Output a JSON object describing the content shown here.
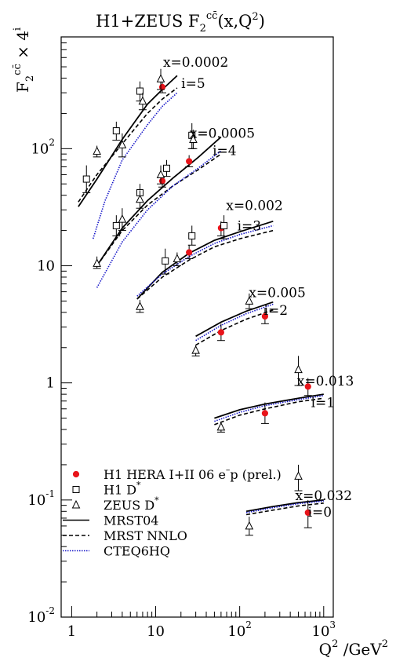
{
  "chart_data": {
    "type": "scatter",
    "title": "H1+ZEUS F",
    "title_sub": "2",
    "title_sup": "cc̄",
    "title_tail": "(x,Q",
    "title_tail_sup": "2",
    "title_end": ")",
    "ylabel": {
      "main": "F",
      "sub": "2",
      "sup": "cc̄",
      "rest": " × 4",
      "rest_sup": "i"
    },
    "xlabel": {
      "main": "Q",
      "sup": "2",
      "rest": " /GeV",
      "rest_sup": "2"
    },
    "x_scale": "log",
    "y_scale": "log",
    "xlim": [
      0.75,
      1300
    ],
    "ylim": [
      0.01,
      900
    ],
    "x_ticks": [
      {
        "value": 1,
        "label": "1"
      },
      {
        "value": 10,
        "label": "10"
      },
      {
        "value": 100,
        "label": "10",
        "sup": "2"
      },
      {
        "value": 1000,
        "label": "10",
        "sup": "3"
      }
    ],
    "y_ticks": [
      {
        "value": 0.01,
        "label": "10",
        "sup": "-2"
      },
      {
        "value": 0.1,
        "label": "10",
        "sup": "-1"
      },
      {
        "value": 1,
        "label": "1"
      },
      {
        "value": 10,
        "label": "10"
      },
      {
        "value": 100,
        "label": "10",
        "sup": "2"
      }
    ],
    "bins": [
      {
        "x_label": "x=0.0002",
        "i_label": "i=5",
        "label_at": [
          30,
          500,
          28,
          330
        ]
      },
      {
        "x_label": "x=0.0005",
        "i_label": "i=4",
        "label_at": [
          62,
          124,
          66,
          88
        ]
      },
      {
        "x_label": "x=0.002",
        "i_label": "i=3",
        "label_at": [
          150,
          30,
          130,
          20
        ]
      },
      {
        "x_label": "x=0.005",
        "i_label": "i=2",
        "label_at": [
          280,
          5.4,
          270,
          3.8
        ]
      },
      {
        "x_label": "x=0.013",
        "i_label": "i=1",
        "label_at": [
          1050,
          0.95,
          980,
          0.62
        ]
      },
      {
        "x_label": "x=0.032",
        "i_label": "i=0",
        "label_at": [
          1000,
          0.1,
          900,
          0.072
        ]
      }
    ],
    "series": [
      {
        "name": "H1 HERA I+II 06 e⁻p (prel.)",
        "marker": "circle",
        "color": "#e8141a",
        "points": [
          {
            "x": 12,
            "y": 335,
            "lo": 300,
            "hi": 370
          },
          {
            "x": 12,
            "y": 53,
            "lo": 47,
            "hi": 60
          },
          {
            "x": 25,
            "y": 78,
            "lo": 70,
            "hi": 88
          },
          {
            "x": 25,
            "y": 13,
            "lo": 11.5,
            "hi": 15
          },
          {
            "x": 60,
            "y": 21,
            "lo": 18,
            "hi": 24
          },
          {
            "x": 60,
            "y": 2.7,
            "lo": 2.3,
            "hi": 3.2
          },
          {
            "x": 200,
            "y": 3.7,
            "lo": 3.2,
            "hi": 4.3
          },
          {
            "x": 200,
            "y": 0.55,
            "lo": 0.45,
            "hi": 0.68
          },
          {
            "x": 650,
            "y": 0.93,
            "lo": 0.78,
            "hi": 1.1
          },
          {
            "x": 650,
            "y": 0.078,
            "lo": 0.058,
            "hi": 0.1
          }
        ]
      },
      {
        "name": "H1 D*",
        "marker": "square",
        "color": "#000000",
        "points": [
          {
            "x": 1.5,
            "y": 55,
            "lo": 42,
            "hi": 72
          },
          {
            "x": 3.4,
            "y": 142,
            "lo": 118,
            "hi": 170
          },
          {
            "x": 6.5,
            "y": 310,
            "lo": 255,
            "hi": 375
          },
          {
            "x": 27,
            "y": 130,
            "lo": 100,
            "hi": 165
          },
          {
            "x": 3.4,
            "y": 22,
            "lo": 18,
            "hi": 27
          },
          {
            "x": 6.5,
            "y": 42,
            "lo": 35,
            "hi": 50
          },
          {
            "x": 13.5,
            "y": 68,
            "lo": 58,
            "hi": 80
          },
          {
            "x": 13,
            "y": 11,
            "lo": 8.5,
            "hi": 14
          },
          {
            "x": 27,
            "y": 18,
            "lo": 15,
            "hi": 22
          },
          {
            "x": 65,
            "y": 22,
            "lo": 17,
            "hi": 27
          }
        ]
      },
      {
        "name": "ZEUS D*",
        "marker": "triangle",
        "color": "#000000",
        "points": [
          {
            "x": 2.0,
            "y": 95,
            "lo": 85,
            "hi": 106
          },
          {
            "x": 4.0,
            "y": 108,
            "lo": 85,
            "hi": 135
          },
          {
            "x": 7.0,
            "y": 255,
            "lo": 215,
            "hi": 300
          },
          {
            "x": 11.5,
            "y": 395,
            "lo": 320,
            "hi": 480
          },
          {
            "x": 28,
            "y": 120,
            "lo": 100,
            "hi": 145
          },
          {
            "x": 2.0,
            "y": 10.5,
            "lo": 9.5,
            "hi": 12
          },
          {
            "x": 4.0,
            "y": 25,
            "lo": 20,
            "hi": 31
          },
          {
            "x": 6.5,
            "y": 37,
            "lo": 31,
            "hi": 44
          },
          {
            "x": 11.5,
            "y": 60,
            "lo": 50,
            "hi": 72
          },
          {
            "x": 6.5,
            "y": 4.5,
            "lo": 4,
            "hi": 5.1
          },
          {
            "x": 18,
            "y": 11.5,
            "lo": 10,
            "hi": 13
          },
          {
            "x": 30,
            "y": 1.9,
            "lo": 1.7,
            "hi": 2.1
          },
          {
            "x": 130,
            "y": 5.0,
            "lo": 4.3,
            "hi": 5.8
          },
          {
            "x": 60,
            "y": 0.42,
            "lo": 0.38,
            "hi": 0.46
          },
          {
            "x": 500,
            "y": 1.3,
            "lo": 0.95,
            "hi": 1.7
          },
          {
            "x": 130,
            "y": 0.06,
            "lo": 0.05,
            "hi": 0.072
          },
          {
            "x": 500,
            "y": 0.16,
            "lo": 0.12,
            "hi": 0.2
          }
        ]
      },
      {
        "name": "MRST04",
        "style": "solid",
        "color": "#000000",
        "curves": [
          {
            "x": [
              1.2,
              2,
              4,
              8,
              12,
              18
            ],
            "y": [
              32,
              55,
              120,
              240,
              320,
              420
            ]
          },
          {
            "x": [
              2,
              4,
              8,
              16,
              32,
              60
            ],
            "y": [
              10,
              21,
              36,
              56,
              84,
              126
            ]
          },
          {
            "x": [
              6,
              12,
              25,
              50,
              100,
              250
            ],
            "y": [
              5.2,
              8.8,
              12.8,
              16.5,
              19.5,
              24
            ]
          },
          {
            "x": [
              30,
              60,
              120,
              250
            ],
            "y": [
              2.5,
              3.3,
              4.1,
              4.9
            ]
          },
          {
            "x": [
              50,
              100,
              200,
              500,
              1000
            ],
            "y": [
              0.5,
              0.59,
              0.66,
              0.74,
              0.8
            ]
          },
          {
            "x": [
              120,
              250,
              500,
              1000
            ],
            "y": [
              0.08,
              0.088,
              0.095,
              0.1
            ]
          }
        ]
      },
      {
        "name": "MRST NNLO",
        "style": "dashed",
        "color": "#000000",
        "curves": [
          {
            "x": [
              1.2,
              2,
              4,
              8,
              12,
              18
            ],
            "y": [
              35,
              60,
              110,
              200,
              265,
              330
            ]
          },
          {
            "x": [
              2,
              4,
              8,
              16,
              32,
              60
            ],
            "y": [
              10,
              20,
              33,
              48,
              66,
              90
            ]
          },
          {
            "x": [
              6,
              12,
              25,
              50,
              100,
              250
            ],
            "y": [
              5.2,
              8,
              11.2,
              14.5,
              17,
              20
            ]
          },
          {
            "x": [
              30,
              60,
              120,
              250
            ],
            "y": [
              2.1,
              2.8,
              3.5,
              4.2
            ]
          },
          {
            "x": [
              50,
              100,
              200,
              500,
              1000
            ],
            "y": [
              0.44,
              0.53,
              0.6,
              0.69,
              0.74
            ]
          },
          {
            "x": [
              120,
              250,
              500,
              1000
            ],
            "y": [
              0.075,
              0.082,
              0.089,
              0.094
            ]
          }
        ]
      },
      {
        "name": "CTEQ6HQ",
        "style": "dotted",
        "color": "#1414c8",
        "curves": [
          {
            "x": [
              1.8,
              2.5,
              4,
              8,
              12,
              18
            ],
            "y": [
              17,
              36,
              80,
              160,
              230,
              300
            ]
          },
          {
            "x": [
              2,
              4,
              8,
              16,
              32,
              60
            ],
            "y": [
              6.5,
              16,
              30,
              48,
              68,
              96
            ]
          },
          {
            "x": [
              6,
              12,
              25,
              50,
              100,
              250
            ],
            "y": [
              5.5,
              8.5,
              12,
              15.5,
              18.5,
              22
            ]
          },
          {
            "x": [
              30,
              60,
              120,
              250
            ],
            "y": [
              2.3,
              3.1,
              3.9,
              4.7
            ]
          },
          {
            "x": [
              50,
              100,
              200,
              500,
              1000
            ],
            "y": [
              0.47,
              0.56,
              0.64,
              0.72,
              0.78
            ]
          },
          {
            "x": [
              120,
              250,
              500,
              1000
            ],
            "y": [
              0.078,
              0.086,
              0.093,
              0.098
            ]
          }
        ]
      }
    ],
    "legend": {
      "placement": "bottom-left",
      "entries": [
        {
          "kind": "marker",
          "marker": "circle",
          "color": "#e8141a",
          "text": "H1 HERA I+II 06 e",
          "sup": "–",
          "rest": "p (prel.)"
        },
        {
          "kind": "marker",
          "marker": "square",
          "color": "#000000",
          "text": "H1 D",
          "sup": "*",
          "rest": ""
        },
        {
          "kind": "marker",
          "marker": "triangle",
          "color": "#000000",
          "text": "ZEUS D",
          "sup": "*",
          "rest": ""
        },
        {
          "kind": "line",
          "style": "solid",
          "color": "#000000",
          "text": "MRST04",
          "sup": "",
          "rest": ""
        },
        {
          "kind": "line",
          "style": "dashed",
          "color": "#000000",
          "text": "MRST NNLO",
          "sup": "",
          "rest": ""
        },
        {
          "kind": "line",
          "style": "dotted",
          "color": "#1414c8",
          "text": "CTEQ6HQ",
          "sup": "",
          "rest": ""
        }
      ]
    }
  }
}
